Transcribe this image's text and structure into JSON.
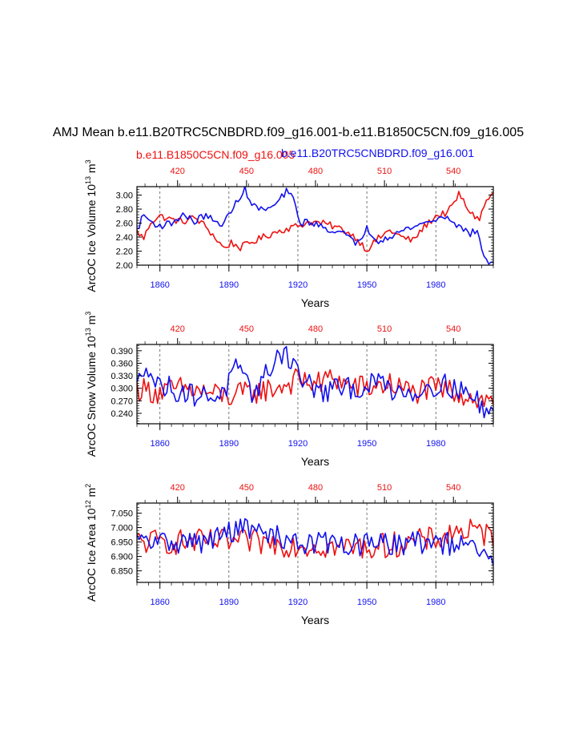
{
  "title": "AMJ Mean b.e11.B20TRC5CNBDRD.f09_g16.001-b.e11.B1850C5CN.f09_g16.005",
  "legend": {
    "left_label": "b.e11.B1850C5CN.f09_g16.005",
    "right_label": "b.e11.B20TRC5CNBDRD.f09_g16.001"
  },
  "colors": {
    "red": "#ee1111",
    "blue": "#1111ee",
    "axis": "#000000",
    "grid": "#555555"
  },
  "chart_data": [
    {
      "type": "line",
      "name": "ice-volume",
      "ylabel": "ArcOC Ice Volume 10",
      "ylabel_exp": "13",
      "ylabel_unit": " m",
      "ylabel_unit_exp": "3",
      "xlabel": "Years",
      "xlim": [
        1850,
        2005
      ],
      "ylim": [
        2.0,
        3.12
      ],
      "yticks": [
        2.0,
        2.2,
        2.4,
        2.6,
        2.8,
        3.0
      ],
      "ytick_labels": [
        "2.00",
        "2.20",
        "2.40",
        "2.60",
        "2.80",
        "3.00"
      ],
      "xticks_bottom": [
        1860,
        1890,
        1920,
        1950,
        1980
      ],
      "xtick_labels_bottom": [
        "1860",
        "1890",
        "1920",
        "1950",
        "1980"
      ],
      "xtick_labels_top": [
        "420",
        "450",
        "480",
        "510",
        "540"
      ],
      "series": [
        {
          "name": "b.e11.B1850C5CN.f09_g16.005",
          "color": "red",
          "knots": [
            [
              1850,
              2.48
            ],
            [
              1853,
              2.38
            ],
            [
              1856,
              2.62
            ],
            [
              1860,
              2.7
            ],
            [
              1865,
              2.65
            ],
            [
              1870,
              2.62
            ],
            [
              1875,
              2.68
            ],
            [
              1880,
              2.55
            ],
            [
              1885,
              2.35
            ],
            [
              1888,
              2.24
            ],
            [
              1891,
              2.32
            ],
            [
              1895,
              2.25
            ],
            [
              1900,
              2.33
            ],
            [
              1905,
              2.4
            ],
            [
              1910,
              2.47
            ],
            [
              1915,
              2.52
            ],
            [
              1920,
              2.56
            ],
            [
              1925,
              2.62
            ],
            [
              1930,
              2.6
            ],
            [
              1935,
              2.56
            ],
            [
              1940,
              2.5
            ],
            [
              1945,
              2.4
            ],
            [
              1950,
              2.22
            ],
            [
              1955,
              2.38
            ],
            [
              1960,
              2.5
            ],
            [
              1965,
              2.4
            ],
            [
              1970,
              2.35
            ],
            [
              1975,
              2.55
            ],
            [
              1980,
              2.7
            ],
            [
              1985,
              2.75
            ],
            [
              1988,
              2.88
            ],
            [
              1990,
              3.02
            ],
            [
              1993,
              2.85
            ],
            [
              1996,
              2.72
            ],
            [
              1999,
              2.66
            ],
            [
              2002,
              2.92
            ],
            [
              2005,
              3.02
            ]
          ],
          "noise": 0.05
        },
        {
          "name": "b.e11.B20TRC5CNBDRD.f09_g16.001",
          "color": "blue",
          "knots": [
            [
              1850,
              2.5
            ],
            [
              1853,
              2.72
            ],
            [
              1856,
              2.62
            ],
            [
              1860,
              2.56
            ],
            [
              1865,
              2.6
            ],
            [
              1870,
              2.72
            ],
            [
              1875,
              2.62
            ],
            [
              1880,
              2.72
            ],
            [
              1885,
              2.58
            ],
            [
              1888,
              2.62
            ],
            [
              1891,
              2.75
            ],
            [
              1894,
              2.95
            ],
            [
              1897,
              3.08
            ],
            [
              1900,
              2.86
            ],
            [
              1905,
              2.78
            ],
            [
              1910,
              2.85
            ],
            [
              1915,
              3.05
            ],
            [
              1918,
              2.95
            ],
            [
              1921,
              2.6
            ],
            [
              1925,
              2.62
            ],
            [
              1930,
              2.55
            ],
            [
              1935,
              2.5
            ],
            [
              1940,
              2.45
            ],
            [
              1945,
              2.3
            ],
            [
              1950,
              2.52
            ],
            [
              1955,
              2.35
            ],
            [
              1960,
              2.42
            ],
            [
              1965,
              2.48
            ],
            [
              1970,
              2.55
            ],
            [
              1975,
              2.6
            ],
            [
              1980,
              2.65
            ],
            [
              1985,
              2.7
            ],
            [
              1990,
              2.55
            ],
            [
              1995,
              2.45
            ],
            [
              1998,
              2.5
            ],
            [
              2000,
              2.2
            ],
            [
              2003,
              2.05
            ],
            [
              2005,
              2.0
            ]
          ],
          "noise": 0.05
        }
      ]
    },
    {
      "type": "line",
      "name": "snow-volume",
      "ylabel": "ArcOC Snow Volume 10",
      "ylabel_exp": "13",
      "ylabel_unit": " m",
      "ylabel_unit_exp": "3",
      "xlabel": "Years",
      "xlim": [
        1850,
        2005
      ],
      "ylim": [
        0.215,
        0.405
      ],
      "yticks": [
        0.24,
        0.27,
        0.3,
        0.33,
        0.36,
        0.39
      ],
      "ytick_labels": [
        "0.240",
        "0.270",
        "0.300",
        "0.330",
        "0.360",
        "0.390"
      ],
      "xticks_bottom": [
        1860,
        1890,
        1920,
        1950,
        1980
      ],
      "xtick_labels_bottom": [
        "1860",
        "1890",
        "1920",
        "1950",
        "1980"
      ],
      "xtick_labels_top": [
        "420",
        "450",
        "480",
        "510",
        "540"
      ],
      "series": [
        {
          "name": "b.e11.B1850C5CN.f09_g16.005",
          "color": "red",
          "knots": [
            [
              1850,
              0.3
            ],
            [
              1860,
              0.29
            ],
            [
              1870,
              0.3
            ],
            [
              1880,
              0.29
            ],
            [
              1890,
              0.28
            ],
            [
              1900,
              0.29
            ],
            [
              1910,
              0.3
            ],
            [
              1920,
              0.32
            ],
            [
              1930,
              0.31
            ],
            [
              1935,
              0.33
            ],
            [
              1940,
              0.31
            ],
            [
              1950,
              0.3
            ],
            [
              1960,
              0.31
            ],
            [
              1970,
              0.29
            ],
            [
              1980,
              0.3
            ],
            [
              1990,
              0.29
            ],
            [
              2000,
              0.27
            ],
            [
              2005,
              0.27
            ]
          ],
          "noise": 0.03
        },
        {
          "name": "b.e11.B20TRC5CNBDRD.f09_g16.001",
          "color": "blue",
          "knots": [
            [
              1850,
              0.3
            ],
            [
              1854,
              0.37
            ],
            [
              1858,
              0.31
            ],
            [
              1865,
              0.3
            ],
            [
              1870,
              0.29
            ],
            [
              1880,
              0.28
            ],
            [
              1888,
              0.29
            ],
            [
              1893,
              0.35
            ],
            [
              1897,
              0.31
            ],
            [
              1900,
              0.29
            ],
            [
              1905,
              0.32
            ],
            [
              1910,
              0.37
            ],
            [
              1914,
              0.39
            ],
            [
              1918,
              0.36
            ],
            [
              1922,
              0.32
            ],
            [
              1930,
              0.29
            ],
            [
              1940,
              0.3
            ],
            [
              1950,
              0.3
            ],
            [
              1955,
              0.32
            ],
            [
              1960,
              0.3
            ],
            [
              1970,
              0.29
            ],
            [
              1980,
              0.31
            ],
            [
              1990,
              0.3
            ],
            [
              2000,
              0.26
            ],
            [
              2005,
              0.24
            ]
          ],
          "noise": 0.028
        }
      ]
    },
    {
      "type": "line",
      "name": "ice-area",
      "ylabel": "ArcOC Ice Area 10",
      "ylabel_exp": "12",
      "ylabel_unit": " m",
      "ylabel_unit_exp": "2",
      "xlabel": "Years",
      "xlim": [
        1850,
        2005
      ],
      "ylim": [
        6.81,
        7.085
      ],
      "yticks": [
        6.85,
        6.9,
        6.95,
        7.0,
        7.05
      ],
      "ytick_labels": [
        "6.850",
        "6.900",
        "6.950",
        "7.000",
        "7.050"
      ],
      "xticks_bottom": [
        1860,
        1890,
        1920,
        1950,
        1980
      ],
      "xtick_labels_bottom": [
        "1860",
        "1890",
        "1920",
        "1950",
        "1980"
      ],
      "xtick_labels_top": [
        "420",
        "450",
        "480",
        "510",
        "540"
      ],
      "series": [
        {
          "name": "b.e11.B1850C5CN.f09_g16.005",
          "color": "red",
          "knots": [
            [
              1850,
              6.95
            ],
            [
              1880,
              6.95
            ],
            [
              1900,
              6.95
            ],
            [
              1920,
              6.94
            ],
            [
              1950,
              6.93
            ],
            [
              1980,
              6.96
            ],
            [
              1990,
              6.99
            ],
            [
              2000,
              6.98
            ],
            [
              2005,
              6.97
            ]
          ],
          "noise": 0.045
        },
        {
          "name": "b.e11.B20TRC5CNBDRD.f09_g16.001",
          "color": "blue",
          "knots": [
            [
              1850,
              6.95
            ],
            [
              1880,
              6.95
            ],
            [
              1895,
              7.0
            ],
            [
              1905,
              6.98
            ],
            [
              1920,
              6.95
            ],
            [
              1950,
              6.94
            ],
            [
              1980,
              6.95
            ],
            [
              1995,
              6.93
            ],
            [
              2005,
              6.88
            ]
          ],
          "noise": 0.04
        }
      ]
    }
  ]
}
